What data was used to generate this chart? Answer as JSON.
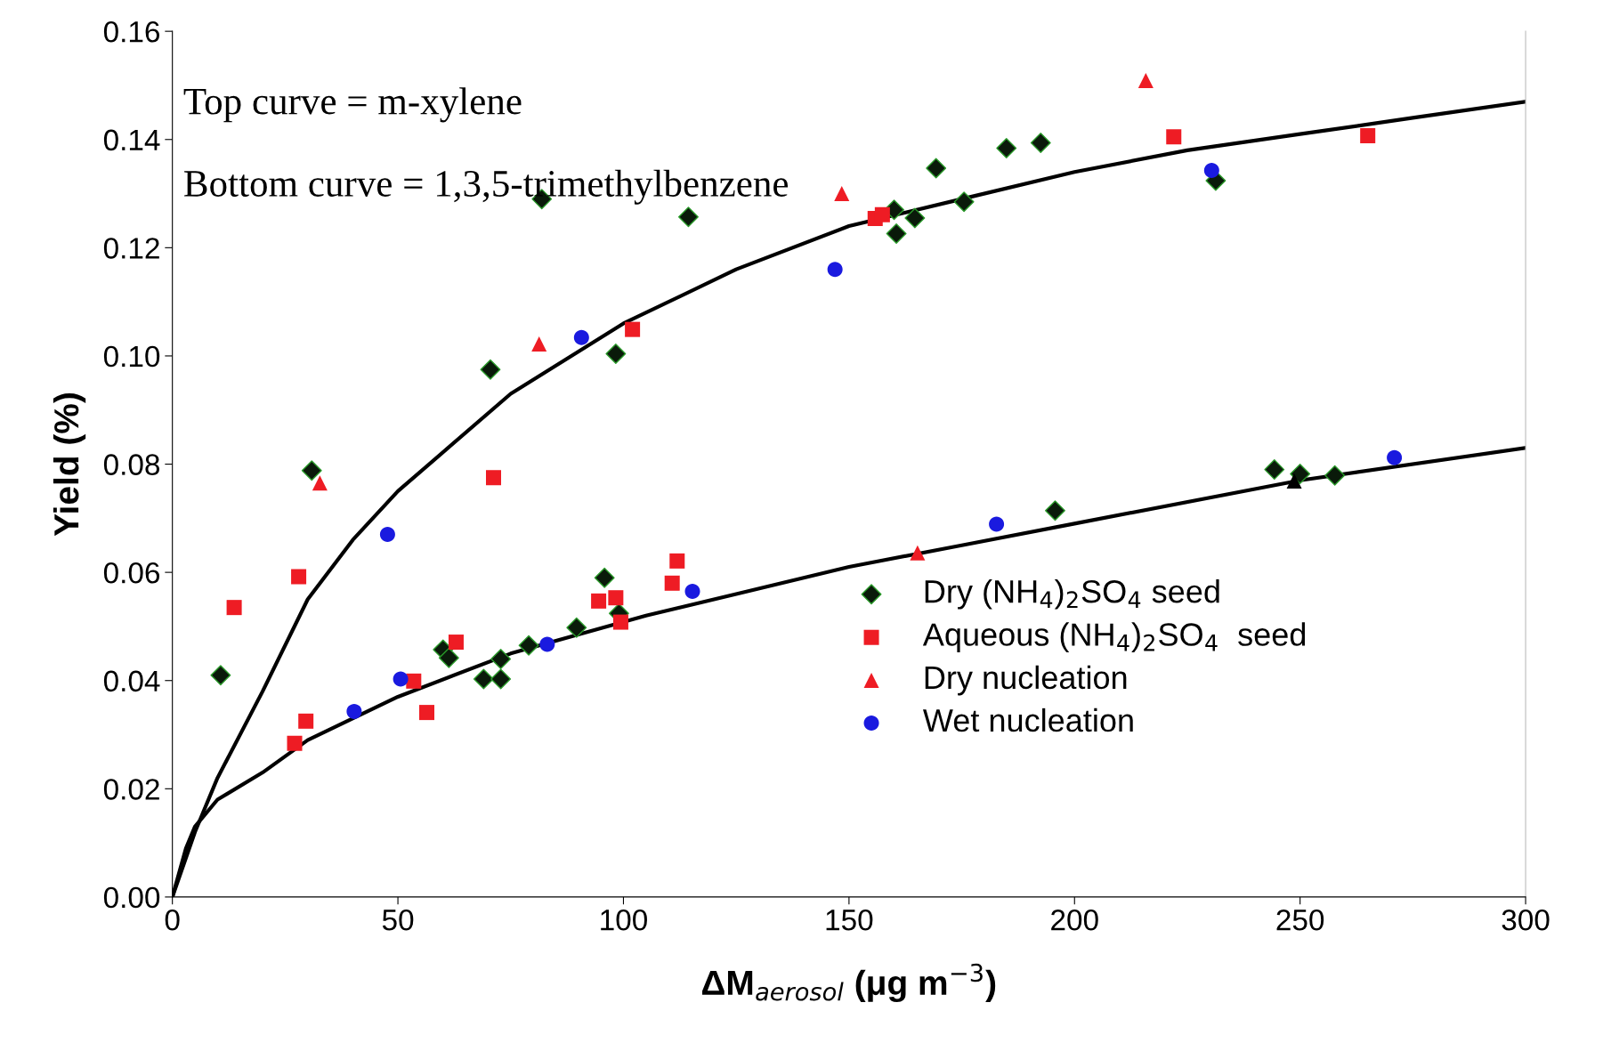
{
  "chart_data": {
    "type": "scatter",
    "xlabel": "ΔM$_{aerosol}$ (μg m$^{−3}$)",
    "ylabel": "Yield (%)",
    "annotations": [
      "Top curve = m-xylene",
      "Bottom curve = 1,3,5-trimethylbenzene"
    ],
    "xlim": [
      0,
      300
    ],
    "xticks": [
      0,
      50,
      100,
      150,
      200,
      250,
      300
    ],
    "ylim": [
      0,
      0.16
    ],
    "yticks": [
      {
        "value": 0,
        "label": "0.00"
      },
      {
        "value": 0.02,
        "label": "0.02"
      },
      {
        "value": 0.04,
        "label": "0.04"
      },
      {
        "value": 0.06,
        "label": "0.06"
      },
      {
        "value": 0.08,
        "label": "0.08"
      },
      {
        "value": 0.1,
        "label": "0.10"
      },
      {
        "value": 0.12,
        "label": "0.12"
      },
      {
        "value": 0.14,
        "label": "0.14"
      },
      {
        "value": 0.16,
        "label": "0.16"
      }
    ],
    "grid": false,
    "legend": "bottom right",
    "series": [
      {
        "type": "line",
        "color": "#000000",
        "marker": "none",
        "x": [
          0,
          5,
          10,
          20,
          30,
          40,
          50,
          75,
          100,
          125,
          150,
          175,
          200,
          225,
          250,
          275,
          300
        ],
        "values": [
          0,
          0.012,
          0.022,
          0.038,
          0.055,
          0.066,
          0.075,
          0.093,
          0.106,
          0.116,
          0.124,
          0.129,
          0.134,
          0.138,
          0.141,
          0.144,
          0.147
        ]
      },
      {
        "type": "line",
        "color": "#000000",
        "marker": "none",
        "x": [
          0,
          3,
          5,
          10,
          20,
          30,
          50,
          75,
          105,
          125,
          150,
          175,
          200,
          250,
          300
        ],
        "values": [
          0,
          0.009,
          0.013,
          0.018,
          0.023,
          0.029,
          0.037,
          0.045,
          0.052,
          0.056,
          0.061,
          0.065,
          0.069,
          0.077,
          0.083
        ]
      },
      {
        "name": "Dry (NH$_{4}$)$_{2}$SO$_{4}$ seed",
        "color": "#0a1a0a",
        "marker": "diamond",
        "x": [
          10.7,
          30.9,
          70.5,
          81.9,
          98.3,
          114.4,
          160,
          160.5,
          164.6,
          169.3,
          175.5,
          184.9,
          192.5,
          231.3,
          60,
          61.3,
          69,
          72.8,
          72.8,
          79,
          89.6,
          95.8,
          99,
          195.7,
          244.3,
          250,
          257.7
        ],
        "values": [
          0.041,
          0.0788,
          0.0975,
          0.129,
          0.1004,
          0.1257,
          0.127,
          0.1226,
          0.1255,
          0.1347,
          0.1285,
          0.1384,
          0.1394,
          0.1324,
          0.0457,
          0.0442,
          0.0403,
          0.0403,
          0.044,
          0.0465,
          0.0498,
          0.059,
          0.0524,
          0.0714,
          0.079,
          0.0782,
          0.0779
        ]
      },
      {
        "name": "Aqueous (NH$_{4}$)$_{2}$SO$_{4}$  seed",
        "color": "#ee1c24",
        "marker": "square",
        "x": [
          13.7,
          28,
          71.2,
          102,
          155.8,
          157.4,
          222,
          265,
          27.1,
          29.6,
          53.5,
          56.4,
          62.9,
          94.5,
          98.3,
          99.4,
          110.8,
          111.9
        ],
        "values": [
          0.0535,
          0.0592,
          0.0775,
          0.1049,
          0.1254,
          0.1261,
          0.1405,
          0.1407,
          0.0284,
          0.0325,
          0.0399,
          0.0341,
          0.0471,
          0.0547,
          0.0553,
          0.0508,
          0.058,
          0.0621
        ]
      },
      {
        "name": "Dry nucleation",
        "color": "#ee1c24",
        "marker": "triangle",
        "x": [
          32.7,
          81.3,
          148.4,
          215.8,
          165.2
        ],
        "values": [
          0.0765,
          0.1022,
          0.13,
          0.1509,
          0.0636
        ]
      },
      {
        "name": "Wet nucleation",
        "color": "#1a1adf",
        "marker": "circle",
        "x": [
          40.3,
          47.7,
          50.6,
          83.1,
          90.7,
          115.3,
          146.9,
          230.4,
          182.7,
          270.9
        ],
        "values": [
          0.0343,
          0.067,
          0.0403,
          0.0467,
          0.1034,
          0.0565,
          0.116,
          0.1343,
          0.0689,
          0.0812
        ]
      },
      {
        "color": "#000000",
        "marker": "triangle",
        "x": [
          248.7
        ],
        "values": [
          0.0769
        ]
      }
    ]
  }
}
